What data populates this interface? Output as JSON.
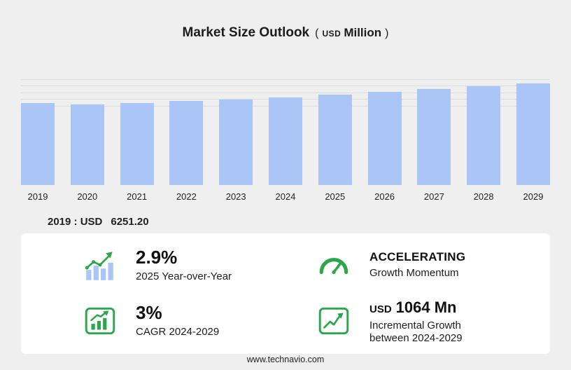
{
  "title": {
    "main": "Market Size Outlook",
    "open_paren": "(",
    "currency": "USD",
    "unit": "Million",
    "close_paren": ")"
  },
  "chart_data": {
    "type": "bar",
    "title": "Market Size Outlook (USD Million)",
    "categories": [
      "2019",
      "2020",
      "2021",
      "2022",
      "2023",
      "2024",
      "2025",
      "2026",
      "2027",
      "2028",
      "2029"
    ],
    "values": [
      6251.2,
      6110,
      6240,
      6385,
      6530,
      6680,
      6874,
      7080,
      7290,
      7510,
      7744
    ],
    "ylim": [
      0,
      8000
    ],
    "gridline_values": [
      6000,
      6500,
      7000,
      7500,
      8000
    ],
    "bar_color": "#a9c6f7",
    "xlabel": "",
    "ylabel": "USD Million",
    "legend": "none",
    "grid": true
  },
  "annotation": {
    "label": "2019 : USD",
    "value": "6251.20"
  },
  "stats": [
    {
      "icon": "yoy-bars-growth-icon",
      "value": "2.9%",
      "label": "2025 Year-over-Year"
    },
    {
      "icon": "speedometer-icon",
      "value": "ACCELERATING",
      "label": "Growth Momentum"
    },
    {
      "icon": "cagr-chart-icon",
      "value": "3%",
      "label": "CAGR 2024-2029"
    },
    {
      "icon": "incremental-growth-icon",
      "value_prefix": "USD",
      "value": "1064 Mn",
      "label": "Incremental Growth between 2024-2029"
    }
  ],
  "footer": {
    "url": "www.technavio.com"
  },
  "colors": {
    "accent_green": "#2aa74a",
    "bar_blue": "#a9c6f7",
    "background": "#efefef",
    "panel": "#ffffff"
  }
}
